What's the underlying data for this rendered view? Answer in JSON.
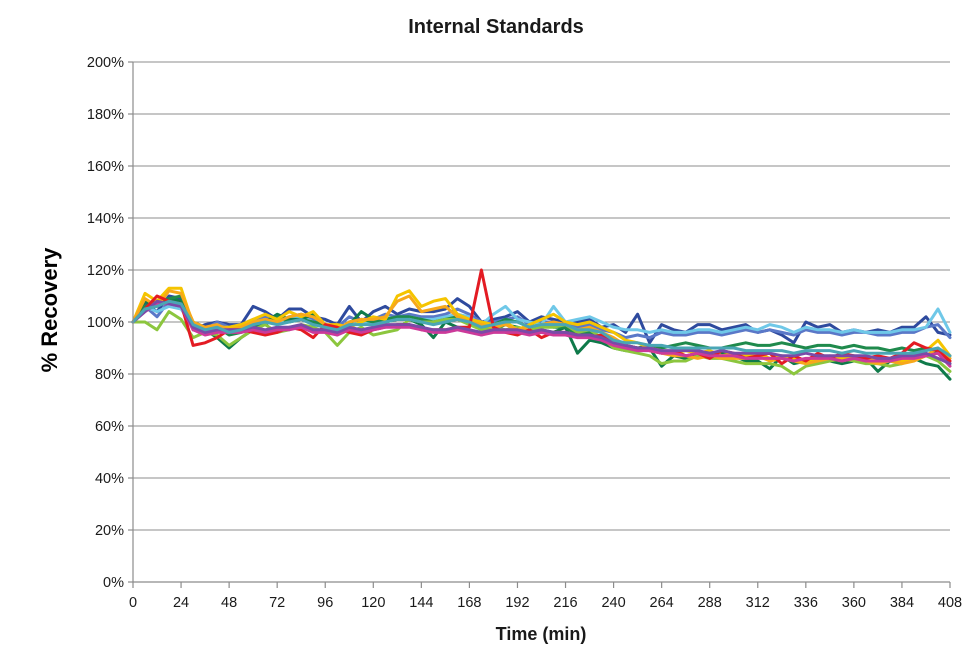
{
  "chart_data": {
    "type": "line",
    "title": "Internal Standards",
    "xlabel": "Time (min)",
    "ylabel": "% Recovery",
    "xlim": [
      0,
      408
    ],
    "ylim": [
      0,
      200
    ],
    "xticks": [
      0,
      24,
      48,
      72,
      96,
      120,
      144,
      168,
      192,
      216,
      240,
      264,
      288,
      312,
      336,
      360,
      384,
      408
    ],
    "yticks": [
      0,
      20,
      40,
      60,
      80,
      100,
      120,
      140,
      160,
      180,
      200
    ],
    "ytick_labels": [
      "0%",
      "20%",
      "40%",
      "60%",
      "80%",
      "100%",
      "120%",
      "140%",
      "160%",
      "180%",
      "200%"
    ],
    "grid": "horizontal",
    "legend": "none",
    "x": [
      0,
      6,
      12,
      18,
      24,
      30,
      36,
      42,
      48,
      54,
      60,
      66,
      72,
      78,
      84,
      90,
      96,
      102,
      108,
      114,
      120,
      126,
      132,
      138,
      144,
      150,
      156,
      162,
      168,
      174,
      180,
      186,
      192,
      198,
      204,
      210,
      216,
      222,
      228,
      234,
      240,
      246,
      252,
      258,
      264,
      270,
      276,
      282,
      288,
      294,
      300,
      306,
      312,
      318,
      324,
      330,
      336,
      342,
      348,
      354,
      360,
      366,
      372,
      378,
      384,
      390,
      396,
      402,
      408
    ],
    "series": [
      {
        "color": "#2e4a9e",
        "values": [
          100,
          107,
          104,
          110,
          109,
          97,
          99,
          100,
          99,
          99,
          106,
          104,
          101,
          105,
          105,
          102,
          101,
          99,
          106,
          100,
          104,
          106,
          103,
          105,
          104,
          104,
          105,
          109,
          106,
          100,
          101,
          102,
          104,
          100,
          102,
          101,
          100,
          100,
          101,
          98,
          99,
          96,
          103,
          92,
          99,
          97,
          96,
          99,
          99,
          97,
          98,
          99,
          96,
          97,
          95,
          92,
          100,
          98,
          99,
          96,
          97,
          96,
          97,
          96,
          98,
          98,
          102,
          96,
          95
        ]
      },
      {
        "color": "#5a78c8",
        "values": [
          100,
          106,
          102,
          108,
          106,
          98,
          97,
          100,
          98,
          99,
          101,
          102,
          100,
          102,
          103,
          101,
          99,
          98,
          102,
          100,
          101,
          103,
          102,
          103,
          102,
          102,
          103,
          105,
          103,
          100,
          100,
          101,
          102,
          99,
          100,
          100,
          99,
          98,
          99,
          97,
          96,
          94,
          95,
          94,
          96,
          95,
          95,
          96,
          96,
          95,
          96,
          97,
          96,
          97,
          96,
          95,
          97,
          96,
          96,
          95,
          96,
          96,
          95,
          95,
          96,
          96,
          98,
          99,
          94
        ]
      },
      {
        "color": "#6fc8e8",
        "values": [
          100,
          106,
          104,
          106,
          105,
          98,
          97,
          99,
          97,
          98,
          100,
          101,
          99,
          101,
          102,
          100,
          98,
          97,
          100,
          99,
          100,
          102,
          101,
          102,
          101,
          101,
          102,
          103,
          102,
          99,
          103,
          106,
          101,
          100,
          99,
          106,
          100,
          101,
          102,
          100,
          98,
          97,
          97,
          96,
          97,
          96,
          96,
          97,
          97,
          96,
          97,
          98,
          97,
          99,
          98,
          96,
          98,
          97,
          97,
          96,
          97,
          96,
          96,
          96,
          97,
          97,
          98,
          105,
          96
        ]
      },
      {
        "color": "#0f7a4a",
        "values": [
          100,
          108,
          106,
          109,
          108,
          98,
          97,
          94,
          90,
          94,
          97,
          100,
          103,
          101,
          101,
          103,
          98,
          95,
          99,
          104,
          101,
          100,
          101,
          101,
          99,
          94,
          100,
          98,
          97,
          95,
          97,
          99,
          98,
          96,
          97,
          96,
          98,
          88,
          93,
          92,
          90,
          89,
          89,
          90,
          83,
          87,
          86,
          88,
          87,
          88,
          87,
          85,
          85,
          82,
          87,
          84,
          85,
          87,
          85,
          84,
          85,
          86,
          81,
          85,
          84,
          86,
          84,
          83,
          78
        ]
      },
      {
        "color": "#1f8a4c",
        "values": [
          100,
          106,
          108,
          109,
          110,
          100,
          98,
          98,
          95,
          96,
          98,
          99,
          102,
          100,
          101,
          100,
          99,
          97,
          100,
          101,
          100,
          101,
          102,
          102,
          101,
          100,
          101,
          102,
          101,
          99,
          99,
          101,
          100,
          98,
          99,
          98,
          98,
          95,
          96,
          94,
          92,
          91,
          90,
          91,
          90,
          91,
          92,
          91,
          90,
          90,
          91,
          92,
          91,
          91,
          92,
          91,
          90,
          91,
          91,
          90,
          91,
          90,
          90,
          89,
          90,
          89,
          90,
          88,
          84
        ]
      },
      {
        "color": "#8cc63e",
        "values": [
          100,
          100,
          97,
          104,
          101,
          94,
          96,
          95,
          91,
          94,
          97,
          99,
          96,
          97,
          99,
          98,
          96,
          91,
          96,
          98,
          95,
          96,
          97,
          101,
          100,
          100,
          101,
          101,
          99,
          97,
          98,
          97,
          98,
          97,
          98,
          98,
          99,
          96,
          97,
          94,
          90,
          89,
          88,
          87,
          84,
          85,
          85,
          87,
          86,
          86,
          85,
          84,
          84,
          84,
          83,
          80,
          83,
          84,
          85,
          86,
          85,
          84,
          84,
          83,
          84,
          86,
          87,
          85,
          81
        ]
      },
      {
        "color": "#f5c400",
        "values": [
          100,
          111,
          108,
          113,
          113,
          99,
          97,
          98,
          98,
          99,
          101,
          103,
          101,
          104,
          102,
          104,
          99,
          99,
          98,
          100,
          102,
          101,
          110,
          112,
          106,
          108,
          109,
          103,
          101,
          100,
          99,
          100,
          97,
          99,
          101,
          103,
          100,
          99,
          100,
          98,
          96,
          93,
          92,
          90,
          89,
          88,
          89,
          88,
          89,
          87,
          88,
          87,
          88,
          86,
          87,
          86,
          85,
          86,
          87,
          86,
          87,
          86,
          85,
          86,
          85,
          86,
          89,
          93,
          87
        ]
      },
      {
        "color": "#f7a81b",
        "values": [
          100,
          109,
          106,
          112,
          111,
          100,
          98,
          99,
          97,
          98,
          100,
          101,
          100,
          102,
          103,
          102,
          99,
          97,
          100,
          101,
          101,
          102,
          108,
          110,
          104,
          105,
          106,
          102,
          100,
          99,
          98,
          99,
          97,
          98,
          99,
          100,
          99,
          97,
          98,
          96,
          94,
          91,
          90,
          89,
          88,
          87,
          87,
          86,
          87,
          86,
          86,
          86,
          87,
          85,
          86,
          85,
          84,
          85,
          86,
          85,
          86,
          85,
          84,
          85,
          84,
          85,
          87,
          90,
          86
        ]
      },
      {
        "color": "#e31b23",
        "values": [
          100,
          105,
          110,
          108,
          107,
          91,
          92,
          94,
          97,
          97,
          96,
          95,
          96,
          98,
          97,
          94,
          99,
          98,
          96,
          95,
          97,
          98,
          99,
          99,
          97,
          97,
          97,
          98,
          98,
          120,
          98,
          96,
          95,
          97,
          94,
          96,
          96,
          95,
          94,
          95,
          92,
          91,
          90,
          89,
          88,
          89,
          87,
          88,
          86,
          89,
          88,
          86,
          87,
          88,
          84,
          87,
          85,
          88,
          86,
          88,
          87,
          86,
          87,
          86,
          88,
          92,
          90,
          89,
          85
        ]
      },
      {
        "color": "#cc3a9a",
        "values": [
          100,
          104,
          107,
          107,
          106,
          97,
          95,
          96,
          96,
          96,
          97,
          96,
          97,
          97,
          98,
          96,
          96,
          95,
          97,
          96,
          97,
          98,
          98,
          98,
          97,
          96,
          96,
          97,
          96,
          95,
          96,
          96,
          96,
          95,
          96,
          95,
          95,
          94,
          94,
          93,
          91,
          90,
          89,
          89,
          88,
          88,
          87,
          88,
          87,
          87,
          87,
          86,
          86,
          86,
          86,
          85,
          86,
          86,
          86,
          85,
          86,
          85,
          85,
          85,
          86,
          86,
          87,
          88,
          83
        ]
      },
      {
        "color": "#7a4aa8",
        "values": [
          100,
          104,
          108,
          107,
          106,
          98,
          96,
          97,
          97,
          97,
          98,
          97,
          98,
          98,
          99,
          97,
          97,
          96,
          98,
          97,
          98,
          99,
          99,
          99,
          98,
          97,
          97,
          98,
          97,
          96,
          97,
          97,
          97,
          96,
          97,
          96,
          96,
          95,
          95,
          94,
          92,
          91,
          90,
          90,
          89,
          89,
          89,
          89,
          88,
          89,
          88,
          88,
          88,
          88,
          87,
          87,
          88,
          87,
          87,
          87,
          87,
          87,
          86,
          86,
          87,
          87,
          88,
          86,
          84
        ]
      },
      {
        "color": "#4aa6b5",
        "values": [
          100,
          105,
          106,
          108,
          107,
          99,
          97,
          98,
          96,
          97,
          99,
          100,
          99,
          100,
          101,
          99,
          98,
          97,
          99,
          99,
          99,
          100,
          101,
          101,
          100,
          99,
          100,
          101,
          100,
          98,
          99,
          100,
          100,
          98,
          99,
          99,
          99,
          97,
          97,
          96,
          93,
          92,
          92,
          91,
          91,
          90,
          90,
          90,
          90,
          90,
          90,
          89,
          89,
          89,
          89,
          88,
          89,
          89,
          89,
          88,
          89,
          88,
          88,
          88,
          88,
          88,
          89,
          90,
          87
        ]
      }
    ]
  }
}
